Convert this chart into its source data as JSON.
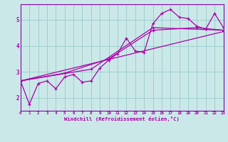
{
  "xlabel": "Windchill (Refroidissement éolien,°C)",
  "background_color": "#cbe8e8",
  "grid_color": "#9ecece",
  "line_color": "#aa00aa",
  "spine_color": "#8800aa",
  "xmin": 0,
  "xmax": 23,
  "ymin": 1.5,
  "ymax": 5.6,
  "yticks": [
    2,
    3,
    4,
    5
  ],
  "xticks": [
    0,
    1,
    2,
    3,
    4,
    5,
    6,
    7,
    8,
    9,
    10,
    11,
    12,
    13,
    14,
    15,
    16,
    17,
    18,
    19,
    20,
    21,
    22,
    23
  ],
  "series1_x": [
    0,
    1,
    2,
    3,
    4,
    5,
    6,
    7,
    8,
    9,
    10,
    11,
    12,
    13,
    14,
    15,
    16,
    17,
    18,
    19,
    20,
    21,
    22,
    23
  ],
  "series1_y": [
    2.65,
    1.75,
    2.55,
    2.65,
    2.35,
    2.8,
    2.9,
    2.6,
    2.65,
    3.15,
    3.45,
    3.7,
    4.3,
    3.8,
    3.75,
    4.85,
    5.25,
    5.4,
    5.1,
    5.05,
    4.75,
    4.65,
    5.25,
    4.7
  ],
  "series2_x": [
    0,
    5,
    10,
    15,
    20,
    23
  ],
  "series2_y": [
    2.65,
    2.95,
    3.5,
    4.6,
    4.7,
    4.6
  ],
  "series3_x": [
    0,
    8,
    15,
    23
  ],
  "series3_y": [
    2.65,
    3.1,
    4.7,
    4.6
  ],
  "series4_x": [
    0,
    23
  ],
  "series4_y": [
    2.65,
    4.55
  ]
}
